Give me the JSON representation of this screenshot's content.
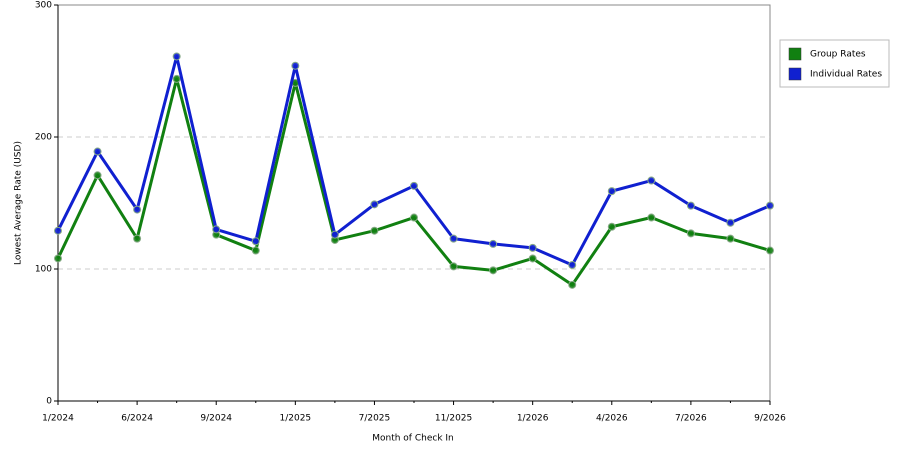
{
  "chart_data": {
    "type": "line",
    "x_label": "Month of Check In",
    "y_label": "Lowest Average Rate (USD)",
    "categories": [
      "1/2024",
      null,
      "6/2024",
      null,
      "9/2024",
      null,
      "1/2025",
      null,
      "7/2025",
      null,
      "11/2025",
      null,
      "1/2026",
      null,
      "4/2026",
      null,
      "7/2026",
      null,
      "9/2026"
    ],
    "series": [
      {
        "name": "Group Rates",
        "color": "#118011",
        "values": [
          108,
          171,
          123,
          244,
          126,
          114,
          241,
          122,
          129,
          139,
          102,
          99,
          108,
          88,
          132,
          139,
          127,
          123,
          114
        ]
      },
      {
        "name": "Individual Rates",
        "color": "#1020d0",
        "values": [
          129,
          189,
          145,
          261,
          130,
          121,
          254,
          126,
          149,
          163,
          123,
          119,
          116,
          103,
          159,
          167,
          148,
          135,
          148
        ]
      }
    ],
    "ylim": [
      0,
      300
    ],
    "yticks": [
      0,
      100,
      200,
      300
    ],
    "grid": true
  }
}
